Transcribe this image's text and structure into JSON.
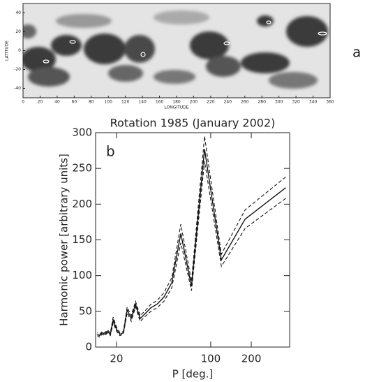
{
  "chart_data": [
    {
      "type": "map",
      "panel_label": "a",
      "xlabel": "LONGITUDE",
      "ylabel": "LATITUDE",
      "xlim": [
        0,
        360
      ],
      "xticks": [
        0,
        20,
        40,
        60,
        80,
        100,
        120,
        140,
        160,
        180,
        200,
        220,
        240,
        260,
        280,
        300,
        320,
        340,
        360
      ],
      "ylim": [
        -50,
        50
      ],
      "yticks": [
        -40,
        -20,
        0,
        20,
        40
      ]
    },
    {
      "type": "line",
      "title": "Rotation 1985 (January 2002)",
      "panel_label": "b",
      "xlabel": "P [deg.]",
      "ylabel": "Harmonic power [arbitrary units]",
      "xscale": "log",
      "xlim": [
        14,
        385
      ],
      "xticks": [
        20,
        100,
        200
      ],
      "ylim": [
        0,
        300
      ],
      "yticks": [
        0,
        50,
        100,
        150,
        200,
        250,
        300
      ],
      "x": [
        360,
        180,
        120,
        90,
        72,
        60,
        51.4,
        45,
        40,
        36,
        32.7,
        30,
        27.7,
        25.7,
        24,
        22.5,
        21.2,
        20,
        18.9,
        18,
        17.1,
        16.4,
        15.7,
        15,
        14.4
      ],
      "series": [
        {
          "color": "#111111",
          "dash": "solid",
          "values": [
            223,
            179,
            122,
            277,
            85,
            159,
            90,
            70,
            60,
            55,
            47,
            40,
            60,
            40,
            52,
            20,
            18,
            25,
            38,
            18,
            22,
            18,
            20,
            16,
            18
          ]
        },
        {
          "color": "#111111",
          "dash": "dashed",
          "values": [
            238,
            192,
            130,
            295,
            92,
            172,
            97,
            76,
            65,
            60,
            51,
            44,
            64,
            44,
            56,
            22,
            20,
            28,
            42,
            20,
            24,
            20,
            22,
            18,
            20
          ]
        },
        {
          "color": "#111111",
          "dash": "dashed",
          "values": [
            208,
            166,
            113,
            260,
            79,
            146,
            83,
            64,
            55,
            50,
            43,
            36,
            56,
            36,
            48,
            18,
            16,
            22,
            34,
            16,
            20,
            16,
            18,
            14,
            16
          ]
        }
      ]
    }
  ]
}
